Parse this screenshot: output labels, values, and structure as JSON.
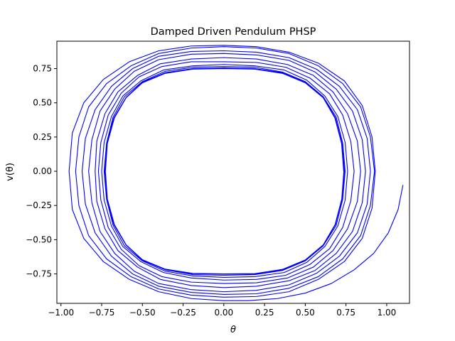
{
  "chart_data": {
    "type": "line",
    "title": "Damped Driven Pendulum PHSP",
    "xlabel": "θ",
    "ylabel": "v(θ)",
    "xlim": [
      -1.025,
      1.14
    ],
    "ylim": [
      -0.965,
      0.95
    ],
    "xticks": [
      -1.0,
      -0.75,
      -0.5,
      -0.25,
      0.0,
      0.25,
      0.5,
      0.75,
      1.0
    ],
    "xtick_labels": [
      "−1.00",
      "−0.75",
      "−0.50",
      "−0.25",
      "0.00",
      "0.25",
      "0.50",
      "0.75",
      "1.00"
    ],
    "yticks": [
      -0.75,
      -0.5,
      -0.25,
      0.0,
      0.25,
      0.5,
      0.75
    ],
    "ytick_labels": [
      "−0.75",
      "−0.50",
      "−0.25",
      "0.00",
      "0.25",
      "0.50",
      "0.75"
    ],
    "grid": false,
    "series": [
      {
        "color": "#0000ff",
        "points": [
          [
            1.1,
            -0.1
          ],
          [
            1.07,
            -0.28
          ],
          [
            1.01,
            -0.45
          ],
          [
            0.92,
            -0.6
          ],
          [
            0.8,
            -0.72
          ],
          [
            0.66,
            -0.82
          ],
          [
            0.5,
            -0.89
          ],
          [
            0.33,
            -0.93
          ],
          [
            0.15,
            -0.945
          ],
          [
            0.0,
            -0.945
          ],
          [
            -0.2,
            -0.93
          ],
          [
            -0.4,
            -0.88
          ],
          [
            -0.58,
            -0.79
          ],
          [
            -0.74,
            -0.66
          ],
          [
            -0.86,
            -0.49
          ],
          [
            -0.93,
            -0.28
          ],
          [
            -0.95,
            0.0
          ],
          [
            -0.93,
            0.28
          ],
          [
            -0.86,
            0.5
          ],
          [
            -0.74,
            0.67
          ],
          [
            -0.58,
            0.8
          ],
          [
            -0.4,
            0.88
          ],
          [
            -0.2,
            0.915
          ],
          [
            0.0,
            0.92
          ],
          [
            0.2,
            0.91
          ],
          [
            0.4,
            0.87
          ],
          [
            0.58,
            0.79
          ],
          [
            0.74,
            0.66
          ],
          [
            0.85,
            0.48
          ],
          [
            0.91,
            0.25
          ],
          [
            0.93,
            0.0
          ],
          [
            0.91,
            -0.27
          ],
          [
            0.85,
            -0.49
          ],
          [
            0.74,
            -0.66
          ],
          [
            0.58,
            -0.79
          ],
          [
            0.4,
            -0.88
          ],
          [
            0.2,
            -0.915
          ],
          [
            0.0,
            -0.92
          ],
          [
            -0.2,
            -0.905
          ],
          [
            -0.4,
            -0.86
          ],
          [
            -0.57,
            -0.77
          ],
          [
            -0.72,
            -0.64
          ],
          [
            -0.83,
            -0.47
          ],
          [
            -0.89,
            -0.25
          ],
          [
            -0.91,
            0.0
          ],
          [
            -0.89,
            0.25
          ],
          [
            -0.83,
            0.47
          ],
          [
            -0.72,
            0.64
          ],
          [
            -0.57,
            0.77
          ],
          [
            -0.4,
            0.86
          ],
          [
            -0.2,
            0.9
          ],
          [
            0.0,
            0.91
          ],
          [
            0.2,
            0.9
          ],
          [
            0.4,
            0.86
          ],
          [
            0.58,
            0.77
          ],
          [
            0.73,
            0.64
          ],
          [
            0.84,
            0.47
          ],
          [
            0.9,
            0.25
          ],
          [
            0.925,
            0.0
          ],
          [
            0.9,
            -0.25
          ],
          [
            0.84,
            -0.47
          ],
          [
            0.73,
            -0.64
          ],
          [
            0.58,
            -0.77
          ],
          [
            0.4,
            -0.855
          ],
          [
            0.2,
            -0.895
          ],
          [
            0.0,
            -0.9
          ],
          [
            -0.2,
            -0.885
          ],
          [
            -0.4,
            -0.84
          ],
          [
            -0.56,
            -0.75
          ],
          [
            -0.69,
            -0.62
          ],
          [
            -0.79,
            -0.45
          ],
          [
            -0.85,
            -0.24
          ],
          [
            -0.87,
            0.0
          ],
          [
            -0.85,
            0.24
          ],
          [
            -0.79,
            0.45
          ],
          [
            -0.69,
            0.62
          ],
          [
            -0.56,
            0.75
          ],
          [
            -0.4,
            0.84
          ],
          [
            -0.2,
            0.875
          ],
          [
            0.0,
            0.88
          ],
          [
            0.2,
            0.87
          ],
          [
            0.4,
            0.83
          ],
          [
            0.57,
            0.745
          ],
          [
            0.71,
            0.62
          ],
          [
            0.82,
            0.45
          ],
          [
            0.88,
            0.24
          ],
          [
            0.9,
            0.0
          ],
          [
            0.88,
            -0.24
          ],
          [
            0.82,
            -0.45
          ],
          [
            0.71,
            -0.62
          ],
          [
            0.57,
            -0.745
          ],
          [
            0.4,
            -0.83
          ],
          [
            0.2,
            -0.87
          ],
          [
            0.0,
            -0.88
          ],
          [
            -0.2,
            -0.865
          ],
          [
            -0.4,
            -0.82
          ],
          [
            -0.55,
            -0.73
          ],
          [
            -0.67,
            -0.6
          ],
          [
            -0.76,
            -0.44
          ],
          [
            -0.81,
            -0.23
          ],
          [
            -0.83,
            0.0
          ],
          [
            -0.81,
            0.23
          ],
          [
            -0.76,
            0.44
          ],
          [
            -0.67,
            0.6
          ],
          [
            -0.55,
            0.73
          ],
          [
            -0.4,
            0.815
          ],
          [
            -0.2,
            0.855
          ],
          [
            0.0,
            0.86
          ],
          [
            0.2,
            0.85
          ],
          [
            0.4,
            0.81
          ],
          [
            0.56,
            0.725
          ],
          [
            0.69,
            0.6
          ],
          [
            0.79,
            0.44
          ],
          [
            0.85,
            0.23
          ],
          [
            0.87,
            0.0
          ],
          [
            0.85,
            -0.23
          ],
          [
            0.79,
            -0.44
          ],
          [
            0.69,
            -0.6
          ],
          [
            0.56,
            -0.725
          ],
          [
            0.4,
            -0.8
          ],
          [
            0.2,
            -0.84
          ],
          [
            0.0,
            -0.85
          ],
          [
            -0.2,
            -0.835
          ],
          [
            -0.39,
            -0.79
          ],
          [
            -0.53,
            -0.7
          ],
          [
            -0.65,
            -0.58
          ],
          [
            -0.73,
            -0.42
          ],
          [
            -0.78,
            -0.22
          ],
          [
            -0.79,
            0.0
          ],
          [
            -0.78,
            0.22
          ],
          [
            -0.73,
            0.42
          ],
          [
            -0.65,
            0.58
          ],
          [
            -0.53,
            0.7
          ],
          [
            -0.39,
            0.785
          ],
          [
            -0.2,
            0.82
          ],
          [
            0.0,
            0.83
          ],
          [
            0.2,
            0.82
          ],
          [
            0.39,
            0.78
          ],
          [
            0.55,
            0.7
          ],
          [
            0.67,
            0.58
          ],
          [
            0.76,
            0.42
          ],
          [
            0.82,
            0.22
          ],
          [
            0.84,
            0.0
          ],
          [
            0.82,
            -0.22
          ],
          [
            0.76,
            -0.42
          ],
          [
            0.67,
            -0.58
          ],
          [
            0.55,
            -0.7
          ],
          [
            0.39,
            -0.78
          ],
          [
            0.2,
            -0.815
          ],
          [
            0.0,
            -0.82
          ],
          [
            -0.2,
            -0.81
          ],
          [
            -0.38,
            -0.77
          ],
          [
            -0.52,
            -0.69
          ],
          [
            -0.63,
            -0.57
          ],
          [
            -0.71,
            -0.41
          ],
          [
            -0.755,
            -0.21
          ],
          [
            -0.77,
            0.0
          ],
          [
            -0.755,
            0.21
          ],
          [
            -0.71,
            0.41
          ],
          [
            -0.63,
            0.57
          ],
          [
            -0.52,
            0.69
          ],
          [
            -0.38,
            0.765
          ],
          [
            -0.2,
            0.8
          ],
          [
            0.0,
            0.8
          ],
          [
            0.2,
            0.795
          ],
          [
            0.38,
            0.76
          ],
          [
            0.53,
            0.68
          ],
          [
            0.65,
            0.565
          ],
          [
            0.73,
            0.41
          ],
          [
            0.78,
            0.215
          ],
          [
            0.8,
            0.0
          ],
          [
            0.78,
            -0.215
          ],
          [
            0.73,
            -0.41
          ],
          [
            0.65,
            -0.565
          ],
          [
            0.53,
            -0.68
          ],
          [
            0.38,
            -0.76
          ],
          [
            0.2,
            -0.79
          ],
          [
            0.0,
            -0.795
          ],
          [
            -0.2,
            -0.78
          ],
          [
            -0.37,
            -0.74
          ],
          [
            -0.51,
            -0.66
          ],
          [
            -0.62,
            -0.55
          ],
          [
            -0.69,
            -0.4
          ],
          [
            -0.735,
            -0.21
          ],
          [
            -0.75,
            0.0
          ],
          [
            -0.735,
            0.21
          ],
          [
            -0.69,
            0.4
          ],
          [
            -0.62,
            0.55
          ],
          [
            -0.51,
            0.66
          ],
          [
            -0.37,
            0.74
          ],
          [
            -0.19,
            0.77
          ],
          [
            0.0,
            0.78
          ],
          [
            0.19,
            0.77
          ],
          [
            0.37,
            0.74
          ],
          [
            0.51,
            0.665
          ],
          [
            0.62,
            0.55
          ],
          [
            0.7,
            0.4
          ],
          [
            0.745,
            0.21
          ],
          [
            0.76,
            0.0
          ],
          [
            0.745,
            -0.21
          ],
          [
            0.7,
            -0.4
          ],
          [
            0.62,
            -0.55
          ],
          [
            0.51,
            -0.665
          ],
          [
            0.37,
            -0.74
          ],
          [
            0.19,
            -0.77
          ],
          [
            0.0,
            -0.775
          ],
          [
            -0.19,
            -0.765
          ],
          [
            -0.36,
            -0.73
          ],
          [
            -0.5,
            -0.655
          ],
          [
            -0.61,
            -0.545
          ],
          [
            -0.68,
            -0.395
          ],
          [
            -0.72,
            -0.205
          ],
          [
            -0.735,
            0.0
          ],
          [
            -0.72,
            0.205
          ],
          [
            -0.68,
            0.395
          ],
          [
            -0.61,
            0.545
          ],
          [
            -0.5,
            0.655
          ],
          [
            -0.36,
            0.73
          ],
          [
            -0.19,
            0.76
          ],
          [
            0.0,
            0.765
          ],
          [
            0.19,
            0.76
          ],
          [
            0.36,
            0.725
          ],
          [
            0.5,
            0.655
          ],
          [
            0.61,
            0.545
          ],
          [
            0.69,
            0.395
          ],
          [
            0.73,
            0.205
          ],
          [
            0.745,
            0.0
          ],
          [
            0.73,
            -0.205
          ],
          [
            0.69,
            -0.395
          ],
          [
            0.61,
            -0.545
          ],
          [
            0.5,
            -0.655
          ],
          [
            0.36,
            -0.725
          ],
          [
            0.19,
            -0.755
          ],
          [
            0.0,
            -0.76
          ],
          [
            -0.19,
            -0.755
          ],
          [
            -0.36,
            -0.72
          ],
          [
            -0.5,
            -0.65
          ],
          [
            -0.6,
            -0.54
          ],
          [
            -0.675,
            -0.39
          ],
          [
            -0.72,
            -0.205
          ],
          [
            -0.73,
            0.0
          ],
          [
            -0.72,
            0.205
          ],
          [
            -0.675,
            0.39
          ],
          [
            -0.6,
            0.54
          ],
          [
            -0.5,
            0.65
          ],
          [
            -0.36,
            0.72
          ],
          [
            -0.19,
            0.75
          ],
          [
            0.0,
            0.755
          ],
          [
            0.19,
            0.75
          ],
          [
            0.36,
            0.72
          ],
          [
            0.5,
            0.65
          ],
          [
            0.61,
            0.54
          ],
          [
            0.685,
            0.39
          ],
          [
            0.725,
            0.205
          ],
          [
            0.74,
            0.0
          ],
          [
            0.725,
            -0.205
          ],
          [
            0.685,
            -0.39
          ],
          [
            0.61,
            -0.54
          ],
          [
            0.5,
            -0.65
          ],
          [
            0.36,
            -0.72
          ],
          [
            0.19,
            -0.75
          ],
          [
            0.0,
            -0.752
          ],
          [
            -0.19,
            -0.748
          ],
          [
            -0.36,
            -0.717
          ],
          [
            -0.5,
            -0.648
          ],
          [
            -0.6,
            -0.538
          ],
          [
            -0.673,
            -0.39
          ],
          [
            -0.716,
            -0.204
          ],
          [
            -0.728,
            0.0
          ],
          [
            -0.716,
            0.204
          ],
          [
            -0.673,
            0.39
          ],
          [
            -0.6,
            0.538
          ],
          [
            -0.5,
            0.648
          ],
          [
            -0.36,
            0.717
          ],
          [
            -0.19,
            0.748
          ],
          [
            0.0,
            0.752
          ],
          [
            0.19,
            0.748
          ],
          [
            0.36,
            0.717
          ],
          [
            0.5,
            0.648
          ],
          [
            0.61,
            0.538
          ],
          [
            0.683,
            0.39
          ],
          [
            0.724,
            0.204
          ],
          [
            0.737,
            0.0
          ],
          [
            0.724,
            -0.204
          ],
          [
            0.683,
            -0.39
          ],
          [
            0.61,
            -0.538
          ],
          [
            0.5,
            -0.648
          ],
          [
            0.36,
            -0.717
          ],
          [
            0.19,
            -0.748
          ],
          [
            0.0,
            -0.75
          ],
          [
            -0.19,
            -0.746
          ],
          [
            -0.36,
            -0.715
          ],
          [
            -0.5,
            -0.646
          ],
          [
            -0.6,
            -0.537
          ],
          [
            -0.672,
            -0.389
          ],
          [
            -0.715,
            -0.203
          ],
          [
            -0.727,
            0.0
          ],
          [
            -0.715,
            0.203
          ],
          [
            -0.672,
            0.389
          ],
          [
            -0.6,
            0.537
          ],
          [
            -0.5,
            0.646
          ],
          [
            -0.36,
            0.715
          ],
          [
            -0.19,
            0.746
          ],
          [
            0.0,
            0.75
          ],
          [
            0.19,
            0.746
          ],
          [
            0.36,
            0.715
          ],
          [
            0.5,
            0.646
          ],
          [
            0.61,
            0.537
          ],
          [
            0.682,
            0.389
          ],
          [
            0.723,
            0.203
          ],
          [
            0.736,
            0.0
          ]
        ]
      }
    ]
  }
}
